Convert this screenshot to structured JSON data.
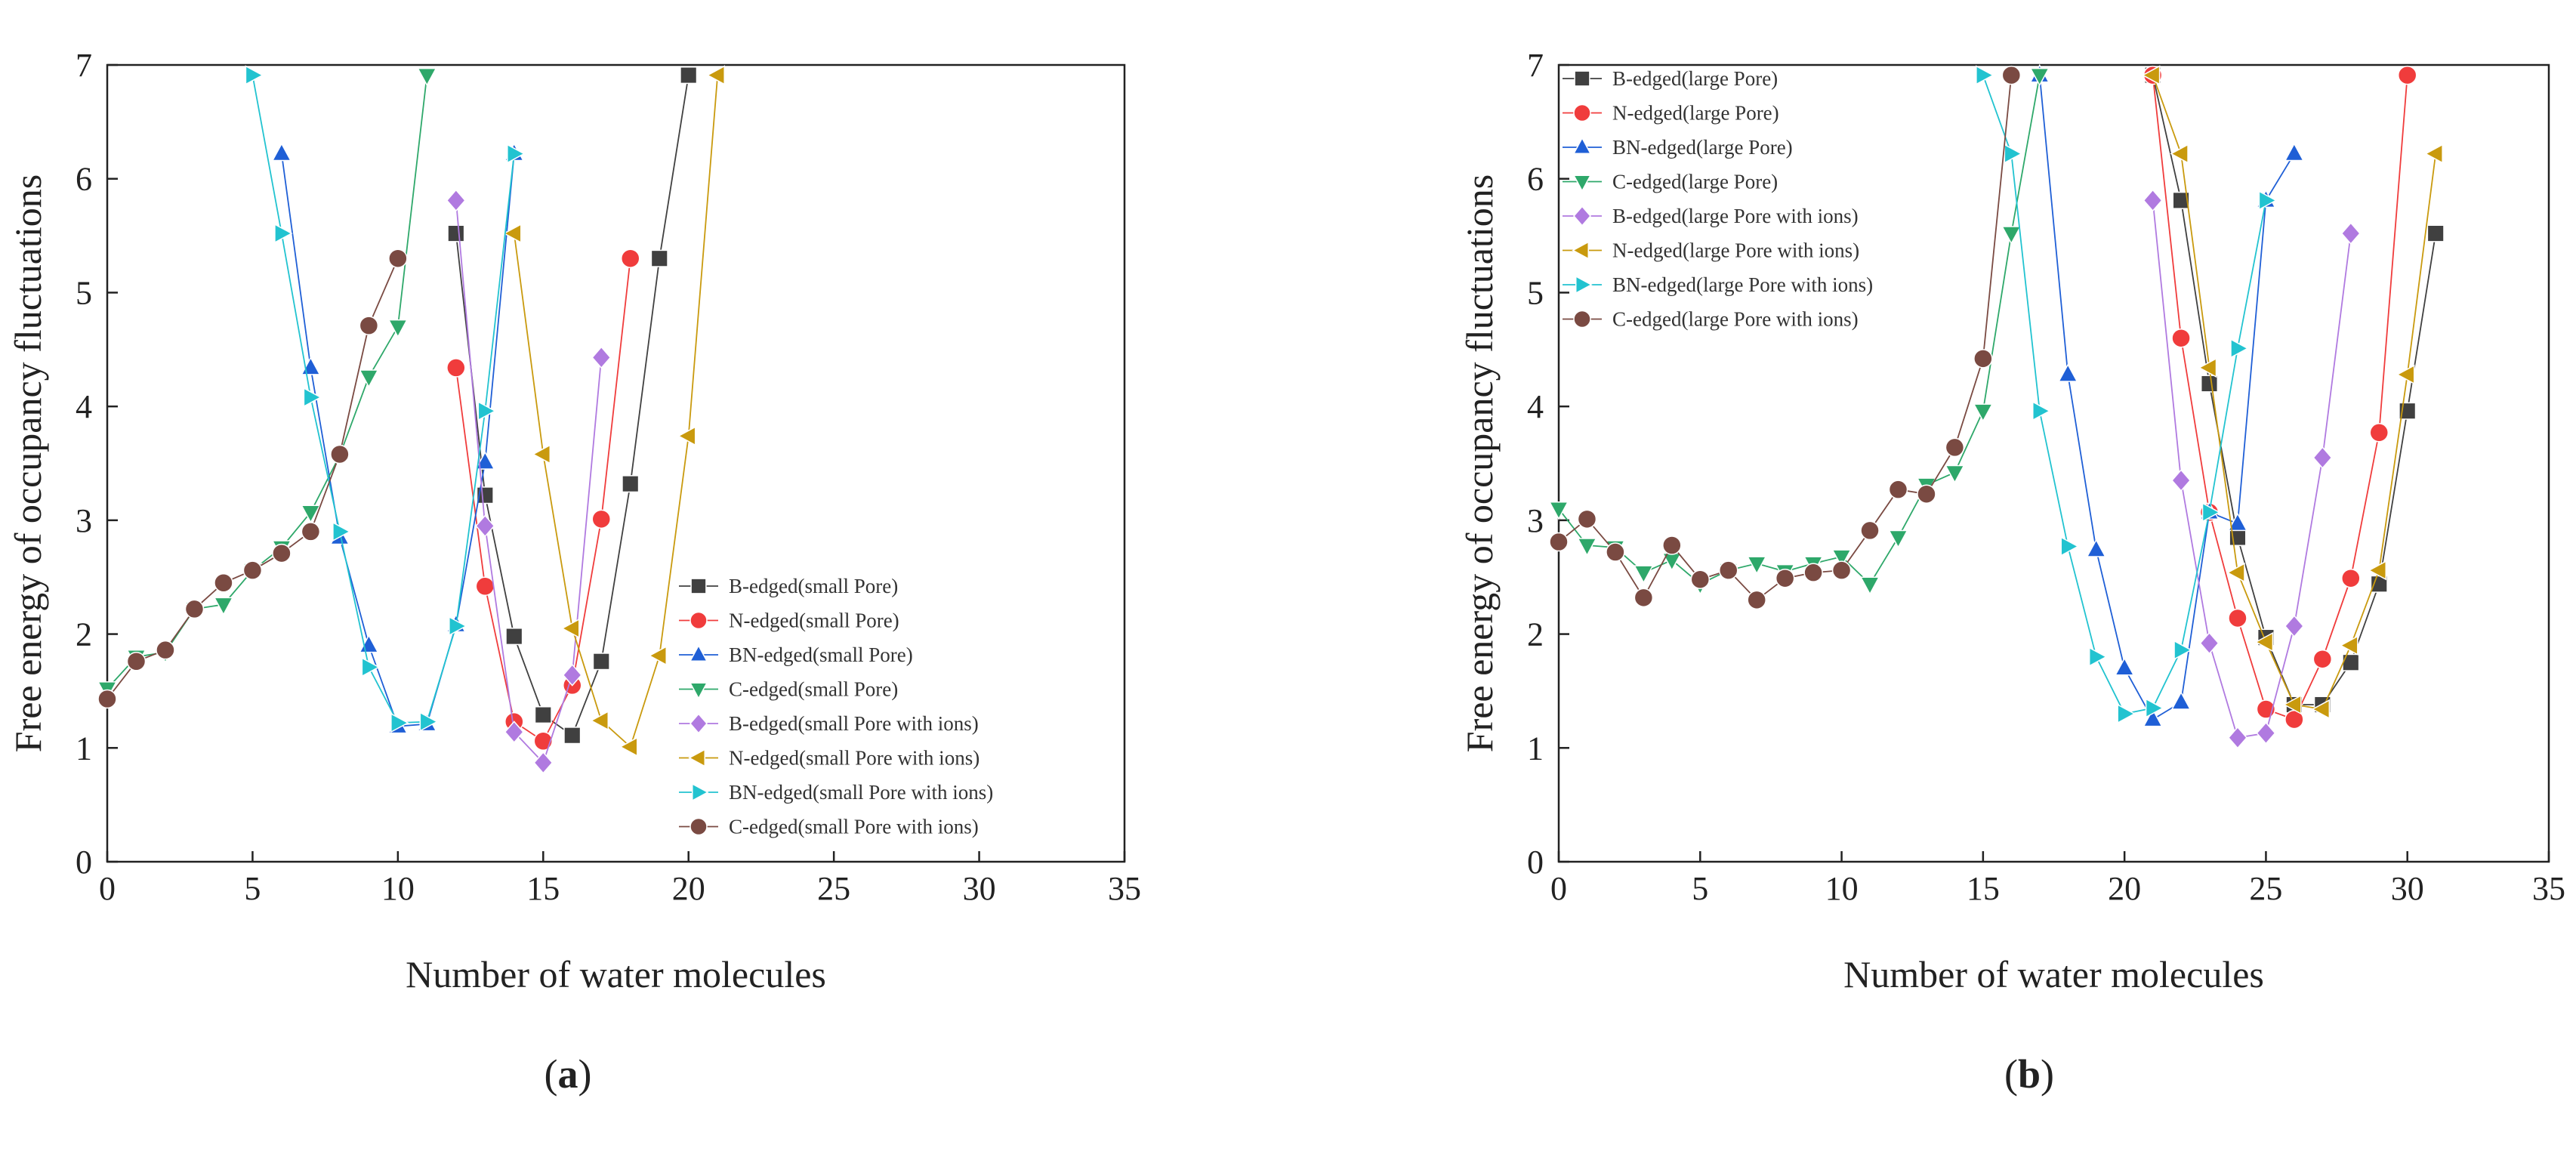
{
  "captions": {
    "a": "a",
    "b": "b"
  },
  "chart_data": [
    {
      "type": "line",
      "panel": "a",
      "xlabel": "Number of water molecules",
      "ylabel": "Free energy of occupancy fluctuations",
      "xlim": [
        0,
        35
      ],
      "ylim": [
        0,
        7
      ],
      "xticks": [
        0,
        5,
        10,
        15,
        20,
        25,
        30,
        35
      ],
      "yticks": [
        0,
        1,
        2,
        3,
        4,
        5,
        6,
        7
      ],
      "grid": false,
      "legend_position": "lower-right",
      "series": [
        {
          "name": "B-edged(small Pore)",
          "color": "#404040",
          "marker": "square",
          "x": [
            12,
            13,
            14,
            15,
            16,
            17,
            18,
            19,
            20
          ],
          "y": [
            5.52,
            3.22,
            1.98,
            1.29,
            1.11,
            1.76,
            3.32,
            5.3,
            6.91
          ]
        },
        {
          "name": "N-edged(small Pore)",
          "color": "#f03c3c",
          "marker": "circle",
          "x": [
            12,
            13,
            14,
            15,
            16,
            17,
            18
          ],
          "y": [
            4.34,
            2.42,
            1.23,
            1.06,
            1.55,
            3.01,
            5.3
          ]
        },
        {
          "name": "BN-edged(small Pore)",
          "color": "#1f5fd6",
          "marker": "triangle-up",
          "x": [
            6,
            7,
            8,
            9,
            10,
            11,
            12,
            13,
            14
          ],
          "y": [
            6.22,
            4.34,
            2.85,
            1.9,
            1.19,
            1.21,
            2.08,
            3.51,
            6.22
          ]
        },
        {
          "name": "C-edged(small Pore)",
          "color": "#2ea86a",
          "marker": "triangle-down",
          "x": [
            0,
            1,
            2,
            3,
            4,
            5,
            6,
            7,
            8,
            9,
            10,
            11
          ],
          "y": [
            1.52,
            1.8,
            1.84,
            2.22,
            2.26,
            2.56,
            2.76,
            3.07,
            3.57,
            4.26,
            4.7,
            6.91
          ]
        },
        {
          "name": "B-edged(small Pore with ions)",
          "color": "#b07ae0",
          "marker": "diamond",
          "x": [
            12,
            13,
            14,
            15,
            16,
            17
          ],
          "y": [
            5.81,
            2.95,
            1.14,
            0.87,
            1.64,
            4.43
          ]
        },
        {
          "name": "N-edged(small Pore with ions)",
          "color": "#c99a0e",
          "marker": "triangle-left",
          "x": [
            14,
            15,
            16,
            17,
            18,
            19,
            20,
            21
          ],
          "y": [
            5.52,
            3.58,
            2.05,
            1.24,
            1.01,
            1.81,
            3.74,
            6.91
          ]
        },
        {
          "name": "BN-edged(small Pore with ions)",
          "color": "#22c3d0",
          "marker": "triangle-right",
          "x": [
            5,
            6,
            7,
            8,
            9,
            10,
            11,
            12,
            13,
            14
          ],
          "y": [
            6.91,
            5.52,
            4.08,
            2.9,
            1.71,
            1.22,
            1.23,
            2.07,
            3.96,
            6.22
          ]
        },
        {
          "name": "C-edged(small Pore  with ions)",
          "color": "#7a4a42",
          "marker": "circle",
          "x": [
            0,
            1,
            2,
            3,
            4,
            5,
            6,
            7,
            8,
            9,
            10
          ],
          "y": [
            1.43,
            1.76,
            1.86,
            2.22,
            2.45,
            2.56,
            2.71,
            2.9,
            3.58,
            4.71,
            5.3
          ]
        }
      ]
    },
    {
      "type": "line",
      "panel": "b",
      "xlabel": "Number of water molecules",
      "ylabel": "Free energy of occupancy fluctuations",
      "xlim": [
        0,
        35
      ],
      "ylim": [
        0,
        7
      ],
      "xticks": [
        0,
        5,
        10,
        15,
        20,
        25,
        30,
        35
      ],
      "yticks": [
        0,
        1,
        2,
        3,
        4,
        5,
        6,
        7
      ],
      "grid": false,
      "legend_position": "top-left",
      "series": [
        {
          "name": "B-edged(large Pore)",
          "color": "#404040",
          "marker": "square",
          "x": [
            21,
            22,
            23,
            24,
            25,
            26,
            27,
            28,
            29,
            30,
            31
          ],
          "y": [
            6.91,
            5.81,
            4.2,
            2.85,
            1.97,
            1.38,
            1.38,
            1.75,
            2.44,
            3.96,
            5.52
          ]
        },
        {
          "name": "N-edged(large Pore)",
          "color": "#f03c3c",
          "marker": "circle",
          "x": [
            21,
            22,
            23,
            24,
            25,
            26,
            27,
            28,
            29,
            30
          ],
          "y": [
            6.91,
            4.6,
            3.07,
            2.14,
            1.34,
            1.25,
            1.78,
            2.49,
            3.77,
            6.91
          ]
        },
        {
          "name": "BN-edged(large Pore)",
          "color": "#1f5fd6",
          "marker": "triangle-up",
          "x": [
            17,
            18,
            19,
            20,
            21,
            22,
            23,
            24,
            25,
            26
          ],
          "y": [
            6.91,
            4.28,
            2.74,
            1.7,
            1.25,
            1.4,
            3.07,
            2.97,
            5.81,
            6.22
          ]
        },
        {
          "name": "C-edged(large Pore)",
          "color": "#2ea86a",
          "marker": "triangle-down",
          "x": [
            0,
            1,
            2,
            3,
            4,
            5,
            6,
            7,
            8,
            9,
            10,
            11,
            12,
            13,
            14,
            15,
            16,
            17
          ],
          "y": [
            3.1,
            2.78,
            2.76,
            2.54,
            2.65,
            2.44,
            2.56,
            2.62,
            2.55,
            2.62,
            2.68,
            2.44,
            2.85,
            3.31,
            3.42,
            3.96,
            5.52,
            6.91
          ]
        },
        {
          "name": "B-edged(large Pore with ions)",
          "color": "#b07ae0",
          "marker": "diamond",
          "x": [
            21,
            22,
            23,
            24,
            25,
            26,
            27,
            28
          ],
          "y": [
            5.81,
            3.35,
            1.92,
            1.09,
            1.13,
            2.07,
            3.55,
            5.52
          ]
        },
        {
          "name": "N-edged(large Pore with ions)",
          "color": "#c99a0e",
          "marker": "triangle-left",
          "x": [
            21,
            22,
            23,
            24,
            25,
            26,
            27,
            28,
            29,
            30,
            31
          ],
          "y": [
            6.91,
            6.22,
            4.34,
            2.54,
            1.93,
            1.38,
            1.34,
            1.9,
            2.56,
            4.28,
            6.22
          ]
        },
        {
          "name": "BN-edged(large Pore with ions)",
          "color": "#22c3d0",
          "marker": "triangle-right",
          "x": [
            15,
            16,
            17,
            18,
            19,
            20,
            21,
            22,
            23,
            24,
            25
          ],
          "y": [
            6.91,
            6.22,
            3.96,
            2.77,
            1.8,
            1.3,
            1.35,
            1.86,
            3.07,
            4.51,
            5.81
          ]
        },
        {
          "name": "C-edged(large Pore with ions)",
          "color": "#7a4a42",
          "marker": "circle",
          "x": [
            0,
            1,
            2,
            3,
            4,
            5,
            6,
            7,
            8,
            9,
            10,
            11,
            12,
            13,
            14,
            15,
            16
          ],
          "y": [
            2.81,
            3.01,
            2.72,
            2.32,
            2.78,
            2.48,
            2.56,
            2.3,
            2.49,
            2.54,
            2.56,
            2.91,
            3.27,
            3.23,
            3.64,
            4.42,
            6.91
          ]
        }
      ]
    }
  ]
}
